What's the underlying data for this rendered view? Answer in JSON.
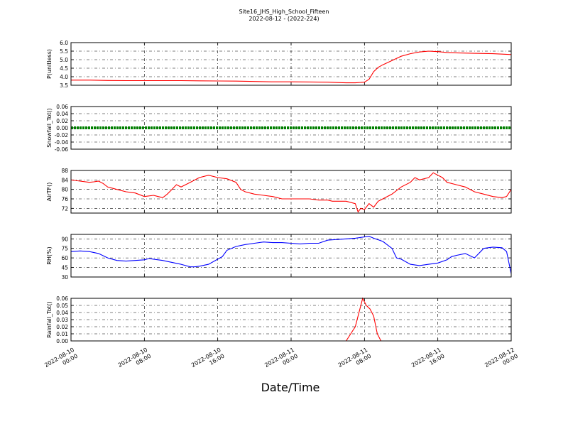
{
  "chart_data": {
    "type": "line",
    "title": "Site16_JHS_High_School_Fifteen",
    "subtitle": "2022-08-12 - (2022-224)",
    "xlabel": "Date/Time",
    "x_ticks": [
      [
        "2022-08-10",
        "00:00"
      ],
      [
        "2022-08-10",
        "08:00"
      ],
      [
        "2022-08-10",
        "16:00"
      ],
      [
        "2022-08-11",
        "00:00"
      ],
      [
        "2022-08-11",
        "08:00"
      ],
      [
        "2022-08-11",
        "16:00"
      ],
      [
        "2022-08-12",
        "00:00"
      ]
    ],
    "x_range_hours": [
      0,
      48
    ],
    "grid": true,
    "panels": [
      {
        "ylabel": "P(unitless)",
        "ylim": [
          3.5,
          6.0
        ],
        "yticks": [
          "3.5",
          "4.0",
          "4.5",
          "5.0",
          "5.5",
          "6.0"
        ],
        "color": "#ff0000",
        "style": "line",
        "points": [
          [
            0,
            3.8
          ],
          [
            2,
            3.8
          ],
          [
            4,
            3.78
          ],
          [
            6,
            3.77
          ],
          [
            8,
            3.77
          ],
          [
            10,
            3.77
          ],
          [
            12,
            3.77
          ],
          [
            14,
            3.76
          ],
          [
            16,
            3.75
          ],
          [
            18,
            3.74
          ],
          [
            20,
            3.72
          ],
          [
            22,
            3.7
          ],
          [
            24,
            3.7
          ],
          [
            26,
            3.69
          ],
          [
            28,
            3.68
          ],
          [
            29,
            3.66
          ],
          [
            30,
            3.64
          ],
          [
            31,
            3.64
          ],
          [
            32,
            3.68
          ],
          [
            32.5,
            3.85
          ],
          [
            33,
            4.3
          ],
          [
            33.5,
            4.55
          ],
          [
            34,
            4.7
          ],
          [
            35,
            4.95
          ],
          [
            36,
            5.2
          ],
          [
            37,
            5.35
          ],
          [
            38,
            5.45
          ],
          [
            39,
            5.5
          ],
          [
            40,
            5.47
          ],
          [
            41,
            5.42
          ],
          [
            42,
            5.4
          ],
          [
            44,
            5.37
          ],
          [
            46,
            5.35
          ],
          [
            48,
            5.3
          ]
        ]
      },
      {
        "ylabel": "Snowfall_Tot()",
        "ylim": [
          -0.06,
          0.06
        ],
        "yticks": [
          "-0.06",
          "-0.04",
          "-0.02",
          "0.00",
          "0.02",
          "0.04",
          "0.06"
        ],
        "color": "#008000",
        "style": "dots",
        "points": [
          [
            0,
            0
          ],
          [
            48,
            0
          ]
        ]
      },
      {
        "ylabel": "AirTF()",
        "ylim": [
          70,
          88
        ],
        "yticks": [
          "72",
          "76",
          "80",
          "84",
          "88"
        ],
        "color": "#ff0000",
        "style": "line",
        "points": [
          [
            0,
            84
          ],
          [
            1,
            83.5
          ],
          [
            2,
            83
          ],
          [
            2.5,
            83.2
          ],
          [
            3,
            83.5
          ],
          [
            3.5,
            82.5
          ],
          [
            4,
            81
          ],
          [
            5,
            80
          ],
          [
            6,
            79
          ],
          [
            7,
            78.5
          ],
          [
            8,
            77
          ],
          [
            9,
            77.5
          ],
          [
            9.5,
            77
          ],
          [
            10,
            76.5
          ],
          [
            10.5,
            78
          ],
          [
            11,
            80
          ],
          [
            11.5,
            82
          ],
          [
            12,
            81
          ],
          [
            13,
            83
          ],
          [
            14,
            85
          ],
          [
            15,
            86
          ],
          [
            16,
            85
          ],
          [
            17,
            84.5
          ],
          [
            18,
            83
          ],
          [
            18.5,
            80
          ],
          [
            19,
            79
          ],
          [
            20,
            78
          ],
          [
            21,
            77.5
          ],
          [
            22,
            77
          ],
          [
            23,
            76
          ],
          [
            24,
            76
          ],
          [
            25,
            76
          ],
          [
            26,
            76
          ],
          [
            27,
            75.5
          ],
          [
            28,
            75.5
          ],
          [
            28.5,
            75
          ],
          [
            29,
            75
          ],
          [
            30,
            75
          ],
          [
            31,
            74
          ],
          [
            31.3,
            70.5
          ],
          [
            31.6,
            72
          ],
          [
            32,
            71.5
          ],
          [
            32.5,
            74
          ],
          [
            33,
            72.5
          ],
          [
            33.5,
            75
          ],
          [
            34,
            76
          ],
          [
            35,
            78
          ],
          [
            36,
            81
          ],
          [
            37,
            83
          ],
          [
            37.5,
            85
          ],
          [
            38,
            84
          ],
          [
            39,
            85
          ],
          [
            39.5,
            87
          ],
          [
            40,
            86
          ],
          [
            40.5,
            85
          ],
          [
            41,
            83
          ],
          [
            42,
            82
          ],
          [
            43,
            81
          ],
          [
            44,
            79
          ],
          [
            45,
            78
          ],
          [
            46,
            77
          ],
          [
            47,
            76.5
          ],
          [
            47.5,
            77
          ],
          [
            48,
            80
          ]
        ]
      },
      {
        "ylabel": "RH(%)",
        "ylim": [
          30,
          97
        ],
        "yticks": [
          "30",
          "45",
          "60",
          "75",
          "90"
        ],
        "color": "#0000ff",
        "style": "line",
        "points": [
          [
            0,
            70
          ],
          [
            1,
            71
          ],
          [
            2,
            70
          ],
          [
            3,
            67
          ],
          [
            4,
            60
          ],
          [
            5,
            56
          ],
          [
            6,
            55
          ],
          [
            7,
            56
          ],
          [
            8,
            57
          ],
          [
            8.5,
            59
          ],
          [
            9,
            58
          ],
          [
            10,
            56
          ],
          [
            11,
            53
          ],
          [
            12,
            50
          ],
          [
            13,
            46
          ],
          [
            13.5,
            46
          ],
          [
            14,
            47
          ],
          [
            15,
            50
          ],
          [
            16,
            58
          ],
          [
            16.5,
            62
          ],
          [
            17,
            72
          ],
          [
            18,
            78
          ],
          [
            19,
            81
          ],
          [
            20,
            83
          ],
          [
            21,
            85
          ],
          [
            22,
            84
          ],
          [
            23,
            84
          ],
          [
            24,
            83
          ],
          [
            25,
            82
          ],
          [
            26,
            83
          ],
          [
            27,
            83
          ],
          [
            28,
            88
          ],
          [
            29,
            89
          ],
          [
            30,
            90
          ],
          [
            31,
            91
          ],
          [
            32,
            93
          ],
          [
            32.5,
            94
          ],
          [
            33,
            91
          ],
          [
            34,
            86
          ],
          [
            35,
            75
          ],
          [
            35.5,
            60
          ],
          [
            36,
            58
          ],
          [
            37,
            50
          ],
          [
            38,
            48
          ],
          [
            39,
            50
          ],
          [
            40,
            52
          ],
          [
            41,
            57
          ],
          [
            41.5,
            62
          ],
          [
            42,
            64
          ],
          [
            43,
            67
          ],
          [
            44,
            60
          ],
          [
            45,
            75
          ],
          [
            46,
            77
          ],
          [
            47,
            76
          ],
          [
            47.5,
            70
          ],
          [
            48,
            35
          ]
        ]
      },
      {
        "ylabel": "Rainfall_Tot()",
        "ylim": [
          0,
          0.06
        ],
        "yticks": [
          "0.00",
          "0.01",
          "0.02",
          "0.03",
          "0.04",
          "0.05",
          "0.06"
        ],
        "color": "#ff0000",
        "style": "line",
        "points": [
          [
            0,
            0
          ],
          [
            30,
            0
          ],
          [
            31,
            0.02
          ],
          [
            31.8,
            0.06
          ],
          [
            32.2,
            0.05
          ],
          [
            32.6,
            0.045
          ],
          [
            33,
            0.035
          ],
          [
            33.4,
            0.01
          ],
          [
            33.8,
            0
          ],
          [
            48,
            0
          ]
        ]
      }
    ]
  }
}
